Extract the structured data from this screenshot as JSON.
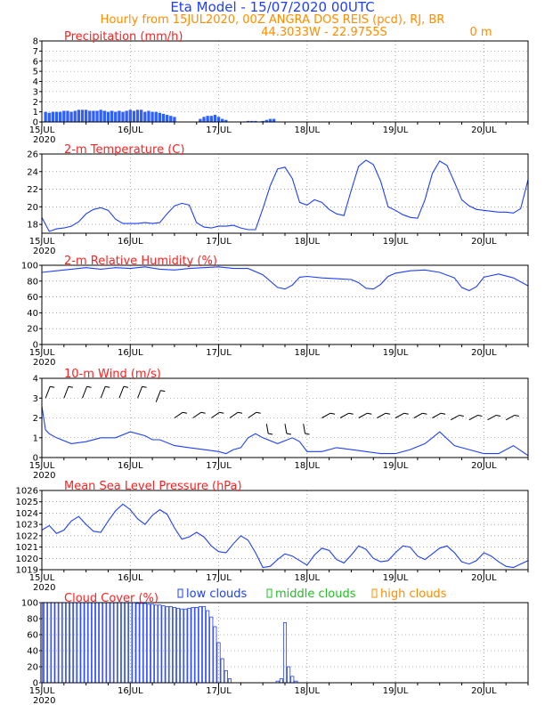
{
  "header": {
    "title": "Eta Model - 15/07/2020 00UTC",
    "subtitle": "Hourly from 15JUL2020, 00Z  ANGRA DOS REIS (pcd), RJ, BR",
    "coords": "44.3033W - 22.9755S",
    "elevation": "0   m",
    "colors": {
      "title": "#1f3fff",
      "subtitle": "#ff8c00",
      "panel_title": "#ff2020"
    }
  },
  "x_axis": {
    "tick_labels": [
      "15JUL",
      "16JUL",
      "17JUL",
      "18JUL",
      "19JUL",
      "20JUL"
    ],
    "year_label": "2020",
    "hours_range": [
      0,
      132
    ]
  },
  "chart_data": [
    {
      "type": "bar",
      "title": "Precipitation (mm/h)",
      "ylim": [
        0,
        8
      ],
      "yticks": [
        "0",
        "1",
        "2",
        "3",
        "4",
        "5",
        "6",
        "7",
        "8"
      ],
      "grid": true,
      "color": "#2f5fff",
      "values": [
        1.0,
        0.9,
        1.0,
        1.0,
        1.0,
        1.1,
        1.1,
        1.0,
        1.1,
        1.2,
        1.2,
        1.2,
        1.1,
        1.1,
        1.1,
        1.2,
        1.1,
        1.0,
        1.1,
        1.0,
        1.1,
        1.0,
        1.1,
        1.2,
        1.1,
        1.2,
        1.2,
        1.0,
        1.1,
        1.0,
        1.0,
        0.9,
        0.8,
        0.7,
        0.6,
        0.5,
        0,
        0,
        0,
        0,
        0,
        0,
        0.3,
        0.5,
        0.6,
        0.6,
        0.7,
        0.5,
        0.3,
        0.2,
        0,
        0,
        0,
        0,
        0.05,
        0.1,
        0.1,
        0.1,
        0.05,
        0.1,
        0.2,
        0.3,
        0.3
      ]
    },
    {
      "type": "line",
      "title": "2-m Temperature (C)",
      "ylim": [
        17,
        26
      ],
      "yticks": [
        "18",
        "20",
        "22",
        "24",
        "26"
      ],
      "grid": true,
      "color": "#1f3fff",
      "x": [
        0,
        2,
        4,
        6,
        8,
        10,
        12,
        14,
        16,
        18,
        20,
        22,
        24,
        26,
        28,
        30,
        32,
        34,
        36,
        38,
        40,
        42,
        44,
        46,
        48,
        50,
        52,
        54,
        56,
        58,
        60,
        62,
        64,
        66,
        68,
        70,
        72,
        74,
        76,
        78,
        80,
        82,
        84,
        86,
        88,
        90,
        92,
        94,
        96,
        98,
        100,
        102,
        104,
        106,
        108,
        110,
        112,
        114,
        116,
        118,
        120,
        122,
        124,
        126,
        128,
        130,
        132
      ],
      "y": [
        18.8,
        17.2,
        17.5,
        17.6,
        17.8,
        18.3,
        19.2,
        19.7,
        19.9,
        19.6,
        18.6,
        18.1,
        18.1,
        18.1,
        18.2,
        18.1,
        18.2,
        19.2,
        20.1,
        20.4,
        20.2,
        18.2,
        17.7,
        17.6,
        17.8,
        17.8,
        17.9,
        17.6,
        17.4,
        17.4,
        19.8,
        22.4,
        24.3,
        24.5,
        23.2,
        20.5,
        20.2,
        20.8,
        20.5,
        19.7,
        19.2,
        19.0,
        21.9,
        24.6,
        25.3,
        24.8,
        22.9,
        20.0,
        19.6,
        19.1,
        18.8,
        18.7,
        20.8,
        23.8,
        25.2,
        24.7,
        22.8,
        20.8,
        20.1,
        19.7,
        19.6,
        19.5,
        19.4,
        19.4,
        19.3,
        19.8,
        23.1
      ]
    },
    {
      "type": "line",
      "title": "2-m Relative Humidity (%)",
      "ylim": [
        0,
        100
      ],
      "yticks": [
        "0",
        "20",
        "40",
        "60",
        "80",
        "100"
      ],
      "grid": true,
      "color": "#1f3fff",
      "x": [
        0,
        4,
        8,
        12,
        16,
        20,
        24,
        28,
        32,
        36,
        40,
        44,
        48,
        52,
        56,
        60,
        62,
        64,
        66,
        68,
        70,
        72,
        76,
        80,
        84,
        86,
        88,
        90,
        92,
        94,
        96,
        100,
        104,
        108,
        112,
        114,
        116,
        118,
        120,
        124,
        128,
        132
      ],
      "y": [
        91,
        93,
        95,
        97,
        95,
        97,
        96,
        98,
        95,
        94,
        96,
        97,
        98,
        96,
        96,
        88,
        80,
        72,
        70,
        75,
        85,
        86,
        84,
        83,
        82,
        78,
        71,
        70,
        76,
        86,
        90,
        93,
        94,
        91,
        84,
        72,
        68,
        73,
        85,
        89,
        84,
        74
      ]
    },
    {
      "type": "line",
      "title": "10-m Wind (m/s)",
      "ylim": [
        0,
        4
      ],
      "yticks": [
        "0",
        "1",
        "2",
        "3",
        "4"
      ],
      "grid": true,
      "color": "#1f3fff",
      "x": [
        0,
        1,
        2,
        4,
        8,
        12,
        16,
        20,
        24,
        28,
        30,
        32,
        36,
        40,
        44,
        48,
        50,
        52,
        54,
        56,
        58,
        60,
        64,
        68,
        70,
        72,
        74,
        76,
        80,
        84,
        88,
        92,
        96,
        100,
        104,
        106,
        108,
        112,
        116,
        120,
        124,
        128,
        132
      ],
      "y": [
        2.6,
        1.4,
        1.2,
        1.0,
        0.7,
        0.8,
        1.0,
        1.0,
        1.3,
        1.1,
        0.9,
        0.9,
        0.6,
        0.5,
        0.4,
        0.3,
        0.2,
        0.4,
        0.5,
        1.0,
        1.2,
        1.0,
        0.7,
        1.0,
        0.8,
        0.3,
        0.3,
        0.3,
        0.5,
        0.4,
        0.3,
        0.2,
        0.2,
        0.4,
        0.7,
        1.0,
        1.3,
        0.6,
        0.4,
        0.2,
        0.2,
        0.6,
        0.1
      ],
      "barb_level": [
        3.0,
        3.0,
        3.0,
        3.0,
        3.0,
        3.0,
        2.8,
        2.0,
        2.0,
        2.0,
        2.0,
        2.0,
        1.7,
        1.7,
        1.7,
        2.0,
        2.0,
        2.0,
        2.0,
        2.0,
        2.0,
        2.0,
        1.9,
        1.9,
        1.9,
        1.9
      ]
    },
    {
      "type": "line",
      "title": "Mean Sea Level Pressure (hPa)",
      "ylim": [
        1019,
        1026
      ],
      "yticks": [
        "1019",
        "1020",
        "1021",
        "1022",
        "1023",
        "1024",
        "1025",
        "1026"
      ],
      "grid": true,
      "color": "#1f3fff",
      "x": [
        0,
        2,
        4,
        6,
        8,
        10,
        12,
        14,
        16,
        18,
        20,
        22,
        24,
        26,
        28,
        30,
        32,
        34,
        36,
        38,
        40,
        42,
        44,
        46,
        48,
        50,
        52,
        54,
        56,
        58,
        60,
        62,
        64,
        66,
        68,
        70,
        72,
        74,
        76,
        78,
        80,
        82,
        84,
        86,
        88,
        90,
        92,
        94,
        96,
        98,
        100,
        102,
        104,
        106,
        108,
        110,
        112,
        114,
        116,
        118,
        120,
        122,
        124,
        126,
        128,
        130,
        132
      ],
      "y": [
        1022.5,
        1022.9,
        1022.2,
        1022.5,
        1023.3,
        1023.7,
        1023.0,
        1022.4,
        1022.3,
        1023.3,
        1024.2,
        1024.8,
        1024.3,
        1023.5,
        1023.0,
        1023.8,
        1024.3,
        1023.9,
        1022.7,
        1021.7,
        1021.9,
        1022.3,
        1021.9,
        1021.1,
        1020.6,
        1020.5,
        1021.3,
        1022.0,
        1021.6,
        1020.5,
        1019.2,
        1019.3,
        1019.9,
        1020.4,
        1020.2,
        1019.8,
        1019.4,
        1020.3,
        1020.9,
        1020.7,
        1019.9,
        1019.6,
        1020.3,
        1021.1,
        1020.8,
        1020.0,
        1019.7,
        1019.8,
        1020.5,
        1021.1,
        1021.0,
        1020.2,
        1019.9,
        1020.4,
        1020.9,
        1021.1,
        1020.5,
        1019.7,
        1019.5,
        1019.8,
        1020.5,
        1020.2,
        1019.7,
        1019.3,
        1019.2,
        1019.5,
        1019.8
      ]
    },
    {
      "type": "bar",
      "title": "Cloud Cover (%)",
      "ylim": [
        0,
        100
      ],
      "yticks": [
        "0",
        "20",
        "40",
        "60",
        "80",
        "100"
      ],
      "grid": true,
      "legend": {
        "placement": "top",
        "items": [
          {
            "label": "low clouds",
            "color": "#1f3fff"
          },
          {
            "label": "middle clouds",
            "color": "#1fbf1f"
          },
          {
            "label": "high clouds",
            "color": "#ff8c00"
          }
        ]
      },
      "series": [
        {
          "name": "low clouds",
          "values": [
            100,
            100,
            100,
            100,
            100,
            100,
            100,
            100,
            100,
            100,
            100,
            100,
            100,
            100,
            100,
            100,
            100,
            100,
            100,
            100,
            100,
            100,
            100,
            100,
            100,
            100,
            99,
            99,
            99,
            98,
            98,
            97,
            97,
            96,
            95,
            95,
            94,
            93,
            92,
            92,
            93,
            94,
            94,
            95,
            95,
            90,
            82,
            70,
            50,
            30,
            15,
            5,
            0,
            0,
            0,
            0,
            0,
            0,
            0,
            0,
            0,
            0,
            0,
            0,
            2,
            5,
            75,
            20,
            8,
            2,
            0,
            0,
            0,
            0,
            0,
            0,
            0,
            0,
            0,
            0,
            0,
            0,
            0,
            0,
            0,
            0,
            0,
            0,
            0,
            0,
            0,
            0,
            0,
            0,
            0,
            0,
            0,
            0,
            0,
            0,
            0,
            0,
            0,
            0,
            0,
            0,
            0,
            0,
            0,
            0,
            0,
            0,
            0,
            0,
            0,
            0,
            0,
            0,
            0,
            0,
            0,
            0,
            0,
            0,
            0,
            0,
            0,
            0,
            0,
            0,
            0,
            0,
            0
          ]
        }
      ]
    }
  ]
}
